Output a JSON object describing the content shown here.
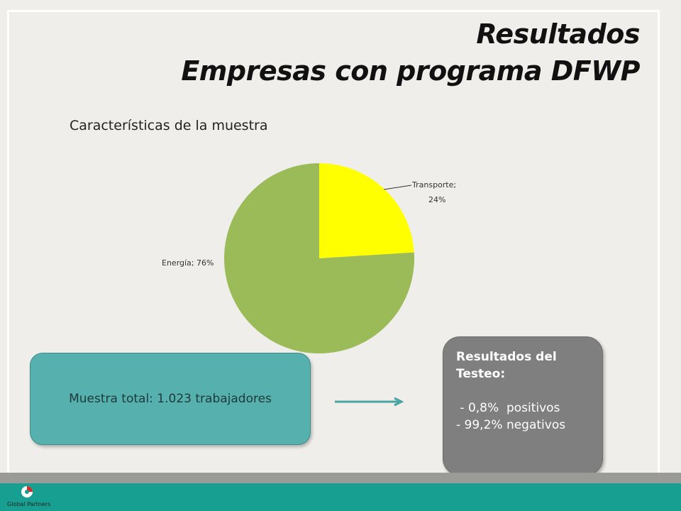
{
  "slide": {
    "title_line1": "Resultados",
    "title_line2": "Empresas con programa DFWP",
    "subtitle": "Características de la muestra"
  },
  "chart_data": {
    "type": "pie",
    "categories": [
      "Transporte",
      "Energía"
    ],
    "values": [
      24,
      76
    ],
    "labels": [
      "Transporte;",
      "24%",
      "Energía; 76%"
    ],
    "colors": [
      "#ffff00",
      "#9bbb59"
    ]
  },
  "sample_box": {
    "text": "Muestra total: 1.023 trabajadores",
    "color": "#56b0ae"
  },
  "results_box": {
    "heading": "Resultados del\nTesteo:",
    "positive": " - 0,8%  positivos",
    "negative": "- 99,2% negativos",
    "color": "#7f7f7f"
  },
  "footer": {
    "logo_text": "Global Partners",
    "accent": "#17a092"
  }
}
